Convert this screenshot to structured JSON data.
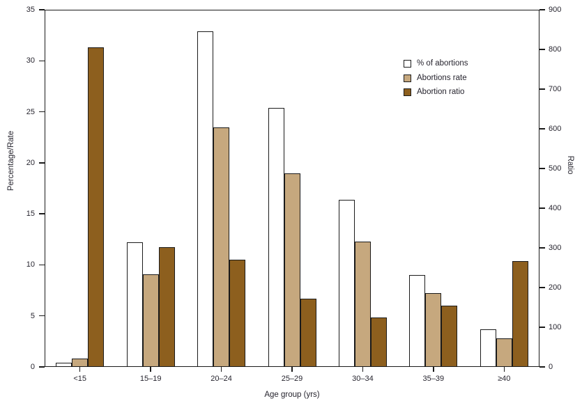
{
  "chart_data": {
    "type": "bar",
    "title": "",
    "categories": [
      "<15",
      "15–19",
      "20–24",
      "25–29",
      "30–34",
      "35–39",
      "≥40"
    ],
    "series": [
      {
        "name": "% of abortions",
        "axis": "left",
        "color": "#ffffff",
        "values": [
          0.4,
          12.2,
          32.9,
          25.4,
          16.4,
          9.0,
          3.7
        ]
      },
      {
        "name": "Abortions rate",
        "axis": "left",
        "color": "#c6a87e",
        "values": [
          0.8,
          9.1,
          23.5,
          19.0,
          12.3,
          7.2,
          2.8
        ]
      },
      {
        "name": "Abortion ratio",
        "axis": "right",
        "color": "#8d5f1e",
        "values": [
          805,
          302,
          271,
          172,
          125,
          154,
          267
        ]
      }
    ],
    "left_axis": {
      "label": "Percentage/Rate",
      "min": 0,
      "max": 35,
      "ticks": [
        0,
        5,
        10,
        15,
        20,
        25,
        30,
        35
      ]
    },
    "right_axis": {
      "label": "Ratio",
      "min": 0,
      "max": 900,
      "ticks": [
        0,
        100,
        200,
        300,
        400,
        500,
        600,
        700,
        800,
        900
      ]
    },
    "x_axis": {
      "label": "Age group (yrs)"
    },
    "legend": {
      "position": "upper-right-inside",
      "entries": [
        "% of abortions",
        "Abortions rate",
        "Abortion ratio"
      ]
    },
    "grid": false,
    "colors": {
      "frame": "#1a1a1a",
      "text": "#26242e",
      "percent_fill": "#ffffff",
      "rate_fill": "#c6a87e",
      "ratio_fill": "#8d5f1e"
    }
  }
}
